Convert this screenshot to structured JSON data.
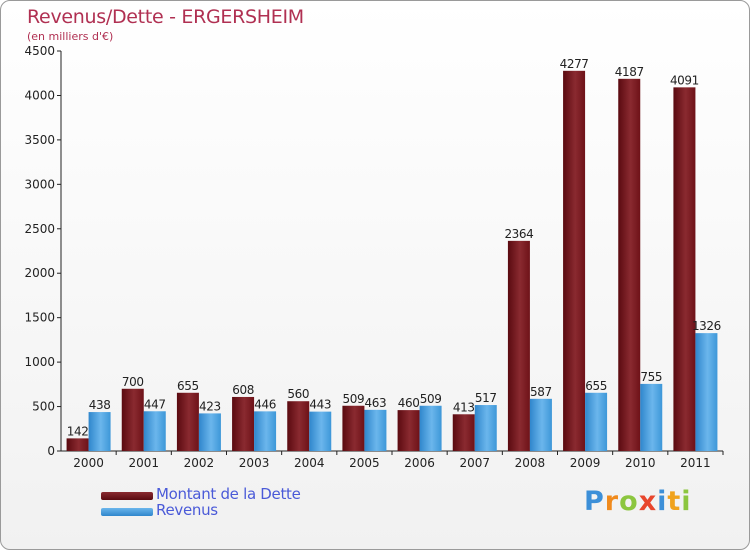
{
  "chart_data": {
    "type": "bar",
    "title": "Revenus/Dette - ERGERSHEIM",
    "subtitle": "(en milliers d'€)",
    "categories": [
      "2000",
      "2001",
      "2002",
      "2003",
      "2004",
      "2005",
      "2006",
      "2007",
      "2008",
      "2009",
      "2010",
      "2011"
    ],
    "series": [
      {
        "name": "Montant de la Dette",
        "color": "#6e1218",
        "values": [
          142,
          700,
          655,
          608,
          560,
          509,
          460,
          413,
          2364,
          4277,
          4187,
          4091
        ]
      },
      {
        "name": "Revenus",
        "color": "#3d97d8",
        "values": [
          438,
          447,
          423,
          446,
          443,
          463,
          509,
          517,
          587,
          655,
          755,
          1326
        ]
      }
    ],
    "ylim": [
      0,
      4500
    ],
    "yticks": [
      0,
      500,
      1000,
      1500,
      2000,
      2500,
      3000,
      3500,
      4000,
      4500
    ],
    "grid": false,
    "legend_position": "bottom-left"
  },
  "logo": {
    "text": "Proxiti",
    "letters": [
      {
        "ch": "P",
        "color": "#3c8fd8"
      },
      {
        "ch": "r",
        "color": "#f08a1c"
      },
      {
        "ch": "o",
        "color": "#8cc63f"
      },
      {
        "ch": "x",
        "color": "#e8462c"
      },
      {
        "ch": "i",
        "color": "#3c8fd8"
      },
      {
        "ch": "t",
        "color": "#f0a21c"
      },
      {
        "ch": "i",
        "color": "#8cc63f"
      }
    ]
  }
}
